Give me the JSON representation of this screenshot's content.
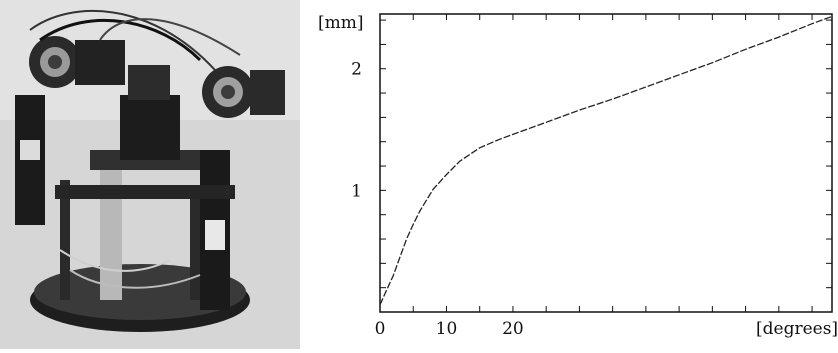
{
  "photo": {
    "description_icon": "robot-head-photo-icon"
  },
  "chart_data": {
    "type": "line",
    "title": "",
    "xlabel": "[degrees]",
    "ylabel": "[mm]",
    "xlim": [
      0,
      68
    ],
    "ylim": [
      0,
      2.45
    ],
    "x_ticks": [
      0,
      10,
      20
    ],
    "y_ticks": [
      1,
      2
    ],
    "grid": false,
    "series": [
      {
        "x": [
          0,
          1,
          2,
          3,
          4,
          5,
          6,
          7,
          8,
          10,
          12,
          15,
          18,
          20,
          25,
          30,
          35,
          40,
          45,
          50,
          55,
          60,
          65,
          68
        ],
        "y": [
          0.06,
          0.18,
          0.3,
          0.45,
          0.6,
          0.72,
          0.83,
          0.92,
          1.01,
          1.13,
          1.24,
          1.35,
          1.42,
          1.46,
          1.56,
          1.66,
          1.75,
          1.85,
          1.95,
          2.05,
          2.16,
          2.26,
          2.37,
          2.43
        ],
        "color": "#222222",
        "dash": "dashed"
      }
    ]
  }
}
